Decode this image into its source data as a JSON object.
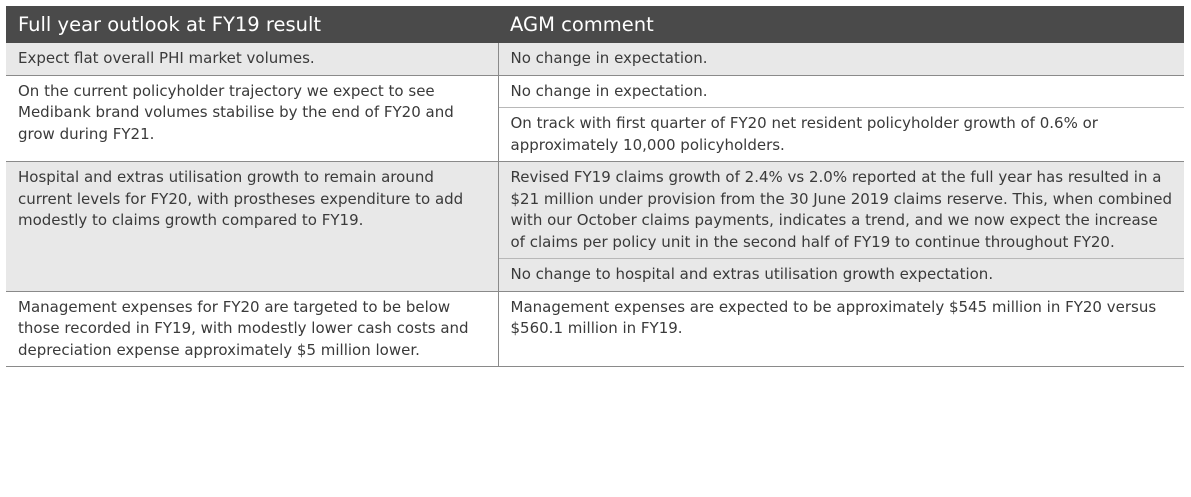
{
  "table": {
    "headers": {
      "outlook": "Full year outlook at FY19 result",
      "comment": "AGM comment"
    },
    "rows": [
      {
        "outlook": "Expect flat overall PHI market volumes.",
        "comments": [
          "No change in expectation."
        ]
      },
      {
        "outlook": "On the current policyholder trajectory we expect to see Medibank brand volumes stabilise by the end of FY20 and grow during FY21.",
        "comments": [
          "No change in expectation.",
          "On track with first quarter of FY20 net resident policyholder growth of 0.6% or approximately 10,000 policyholders."
        ]
      },
      {
        "outlook": "Hospital and extras utilisation growth to remain around current levels for FY20, with prostheses expenditure to add modestly to claims growth compared to FY19.",
        "comments": [
          "Revised FY19 claims growth of 2.4% vs 2.0% reported at the full year has resulted in a $21 million under provision from the 30 June 2019 claims reserve. This, when combined with our October claims payments, indicates a trend, and we now expect the increase of claims per policy unit in the second half of FY19 to continue throughout FY20.",
          "No change to hospital and extras utilisation growth expectation."
        ]
      },
      {
        "outlook": "Management expenses for FY20 are targeted to be below those recorded in FY19, with modestly lower cash costs and depreciation expense approximately $5 million lower.",
        "comments": [
          "Management expenses are expected to be approximately $545 million in FY20 versus $560.1 million in FY19."
        ]
      }
    ]
  },
  "colors": {
    "header_background": "#4a4a4a",
    "header_text": "#ffffff",
    "shaded_row": "#e8e8e8",
    "rule": "#8a8a8a",
    "body_text": "#3a3a3a"
  }
}
